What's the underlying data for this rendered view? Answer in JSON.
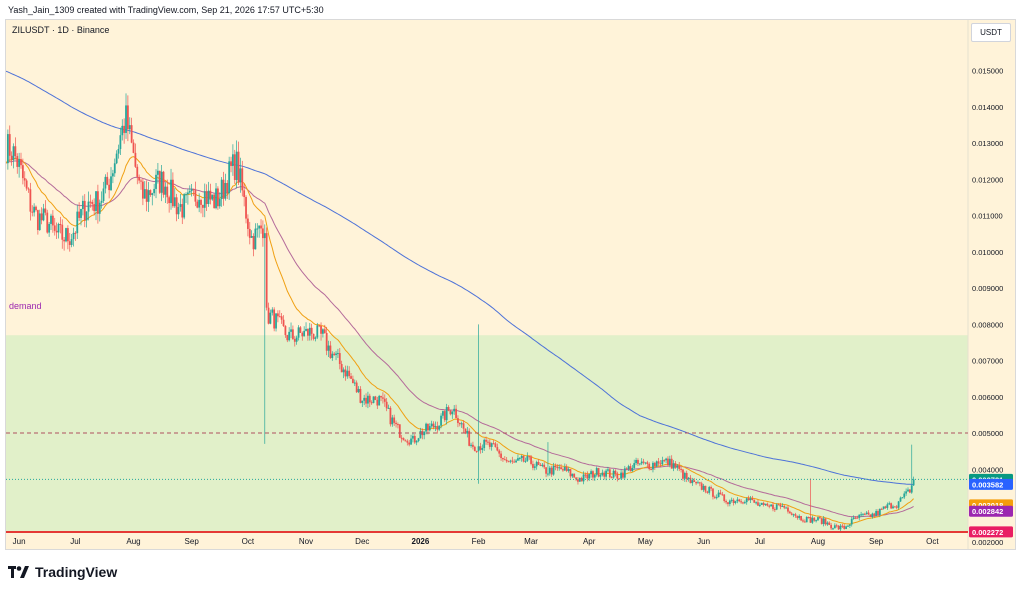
{
  "header": {
    "credit": "Yash_Jain_1309 created with TradingView.com, Sep 21, 2026 17:57 UTC+5:30",
    "symbol_line": "ZILUSDT · 1D · Binance",
    "currency_button": "USDT"
  },
  "footer": {
    "brand": "TradingView"
  },
  "colors": {
    "background": "#fff3d9",
    "zone_fill": "#dcefc6",
    "candle_up": "#26a69a",
    "candle_down": "#ef5350",
    "ma_fast": "#f0a013",
    "ma_mid": "#b46a9a",
    "ma_slow": "#4d72d8",
    "support_line": "#e53935",
    "resistance_dashed": "#b05060"
  },
  "chart_data": {
    "type": "candlestick",
    "title": "ZILUSDT · 1D · Binance",
    "ylim": [
      0.0018,
      0.0164
    ],
    "y_ticks": [
      "0.002000",
      "0.004000",
      "0.005000",
      "0.006000",
      "0.007000",
      "0.008000",
      "0.009000",
      "0.010000",
      "0.011000",
      "0.012000",
      "0.013000",
      "0.014000",
      "0.015000"
    ],
    "x_ticks": [
      "Jun",
      "Jul",
      "Aug",
      "Sep",
      "Oct",
      "Nov",
      "Dec",
      "2026",
      "Feb",
      "Mar",
      "Apr",
      "May",
      "Jun",
      "Jul",
      "Aug",
      "Sep",
      "Oct"
    ],
    "price_path": [
      {
        "date": "2025-05-25",
        "price": 0.0129
      },
      {
        "date": "2025-06-10",
        "price": 0.0112
      },
      {
        "date": "2025-06-20",
        "price": 0.0103
      },
      {
        "date": "2025-07-01",
        "price": 0.0108
      },
      {
        "date": "2025-07-12",
        "price": 0.0113
      },
      {
        "date": "2025-07-22",
        "price": 0.0126
      },
      {
        "date": "2025-07-28",
        "price": 0.0134
      },
      {
        "date": "2025-08-05",
        "price": 0.0118
      },
      {
        "date": "2025-08-18",
        "price": 0.0117
      },
      {
        "date": "2025-09-01",
        "price": 0.0113
      },
      {
        "date": "2025-09-15",
        "price": 0.0117
      },
      {
        "date": "2025-09-25",
        "price": 0.0122
      },
      {
        "date": "2025-10-03",
        "price": 0.0106
      },
      {
        "date": "2025-10-10",
        "price": 0.0107
      },
      {
        "date": "2025-10-11",
        "price": 0.0081
      },
      {
        "date": "2025-10-20",
        "price": 0.0079
      },
      {
        "date": "2025-11-01",
        "price": 0.0076
      },
      {
        "date": "2025-11-10",
        "price": 0.0078
      },
      {
        "date": "2025-11-20",
        "price": 0.0067
      },
      {
        "date": "2025-12-01",
        "price": 0.0061
      },
      {
        "date": "2025-12-10",
        "price": 0.0058
      },
      {
        "date": "2025-12-20",
        "price": 0.0052
      },
      {
        "date": "2025-12-28",
        "price": 0.0047
      },
      {
        "date": "2026-01-08",
        "price": 0.0053
      },
      {
        "date": "2026-01-18",
        "price": 0.0056
      },
      {
        "date": "2026-01-28",
        "price": 0.0048
      },
      {
        "date": "2026-02-05",
        "price": 0.0046
      },
      {
        "date": "2026-02-20",
        "price": 0.0042
      },
      {
        "date": "2026-03-05",
        "price": 0.0041
      },
      {
        "date": "2026-03-25",
        "price": 0.0038
      },
      {
        "date": "2026-04-15",
        "price": 0.0039
      },
      {
        "date": "2026-04-30",
        "price": 0.0041
      },
      {
        "date": "2026-05-08",
        "price": 0.0043
      },
      {
        "date": "2026-05-20",
        "price": 0.0039
      },
      {
        "date": "2026-06-05",
        "price": 0.0033
      },
      {
        "date": "2026-06-25",
        "price": 0.0031
      },
      {
        "date": "2026-07-15",
        "price": 0.0029
      },
      {
        "date": "2026-07-28",
        "price": 0.0026
      },
      {
        "date": "2026-08-15",
        "price": 0.0024
      },
      {
        "date": "2026-08-25",
        "price": 0.0027
      },
      {
        "date": "2026-09-05",
        "price": 0.0029
      },
      {
        "date": "2026-09-12",
        "price": 0.003
      },
      {
        "date": "2026-09-19",
        "price": 0.0035
      },
      {
        "date": "2026-09-21",
        "price": 0.003721
      }
    ],
    "spikes": [
      {
        "date": "2025-10-10",
        "low": 0.0047
      },
      {
        "date": "2026-02-01",
        "high": 0.008,
        "low": 0.0036
      },
      {
        "date": "2026-03-10",
        "high": 0.00475
      },
      {
        "date": "2026-07-28",
        "high": 0.00375
      },
      {
        "date": "2026-09-20",
        "high": 0.00468
      }
    ],
    "demand_zone": {
      "label": "demand",
      "top": 0.0077,
      "bottom": 0.00228
    },
    "horizontal_lines": [
      {
        "price": 0.00227,
        "style": "solid",
        "color": "#e53935"
      },
      {
        "price": 0.005,
        "style": "dashed",
        "color": "#b05060"
      },
      {
        "price": 0.00372,
        "style": "dotted",
        "color": "#26a69a"
      }
    ],
    "moving_averages": [
      {
        "color": "#f0a013",
        "last": "0.003018"
      },
      {
        "color": "#b46a9a",
        "last": "0.002842"
      },
      {
        "color": "#4d72d8",
        "last": "0.003582"
      }
    ],
    "price_badges": [
      {
        "label": "0.003721",
        "color": "#089981"
      },
      {
        "label": "0.003582",
        "color": "#2962ff"
      },
      {
        "label": "0.003018",
        "color": "#f59e0b"
      },
      {
        "label": "0.002842",
        "color": "#9c27b0"
      },
      {
        "label": "0.002272",
        "color": "#e91e63"
      }
    ]
  }
}
